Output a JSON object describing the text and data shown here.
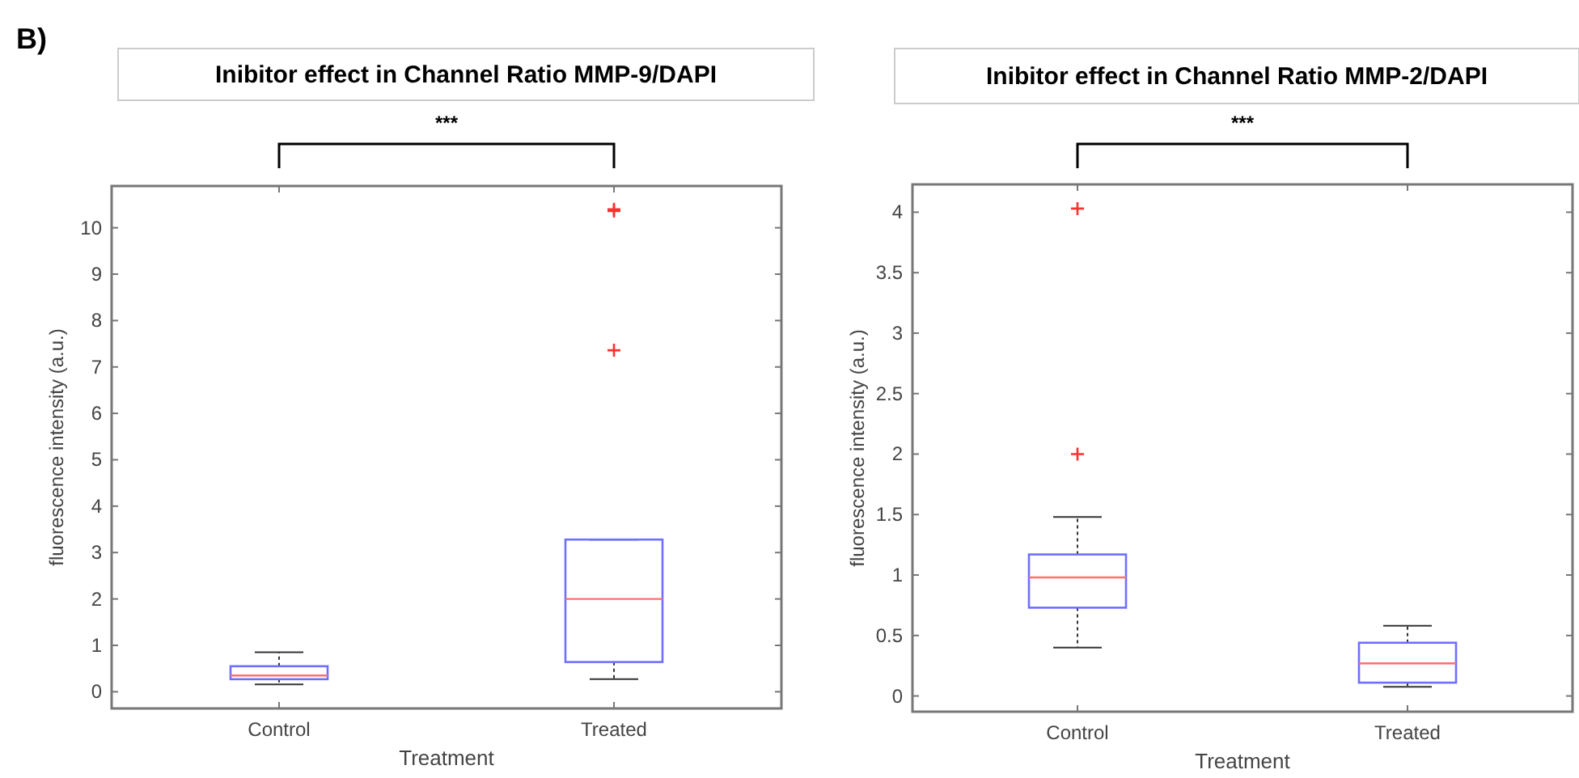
{
  "chart_data": [
    {
      "type": "box",
      "title": "Inibitor effect in Channel Ratio MMP-9/DAPI",
      "xlabel": "Treatment",
      "ylabel": "fluorescence intensity (a.u.)",
      "categories": [
        "Control",
        "Treated"
      ],
      "ylim": [
        -0.36,
        10.9
      ],
      "yticks": [
        0,
        1,
        2,
        3,
        4,
        5,
        6,
        7,
        8,
        9,
        10
      ],
      "grid": false,
      "annotations": [
        "B)",
        "***"
      ],
      "boxes": [
        {
          "low": 0.16,
          "q1": 0.27,
          "median": 0.35,
          "q3": 0.55,
          "high": 0.85
        },
        {
          "low": 0.27,
          "q1": 0.64,
          "median": 2.0,
          "q3": 3.28,
          "high": 3.28,
          "outliers": [
            10.36,
            10.4,
            7.36
          ]
        }
      ]
    },
    {
      "type": "box",
      "title": "Inibitor effect in Channel Ratio MMP-2/DAPI",
      "xlabel": "Treatment",
      "ylabel": "fluorescence intensity (a.u.)",
      "categories": [
        "Control",
        "Treated"
      ],
      "ylim": [
        -0.13,
        4.23
      ],
      "yticks": [
        0,
        0.5,
        1,
        1.5,
        2,
        2.5,
        3,
        3.5,
        4
      ],
      "grid": false,
      "annotations": [
        "***"
      ],
      "boxes": [
        {
          "low": 0.4,
          "q1": 0.73,
          "median": 0.98,
          "q3": 1.17,
          "high": 1.48,
          "outliers": [
            4.03,
            2.0
          ]
        },
        {
          "low": 0.076,
          "q1": 0.11,
          "median": 0.27,
          "q3": 0.44,
          "high": 0.58
        }
      ]
    }
  ]
}
